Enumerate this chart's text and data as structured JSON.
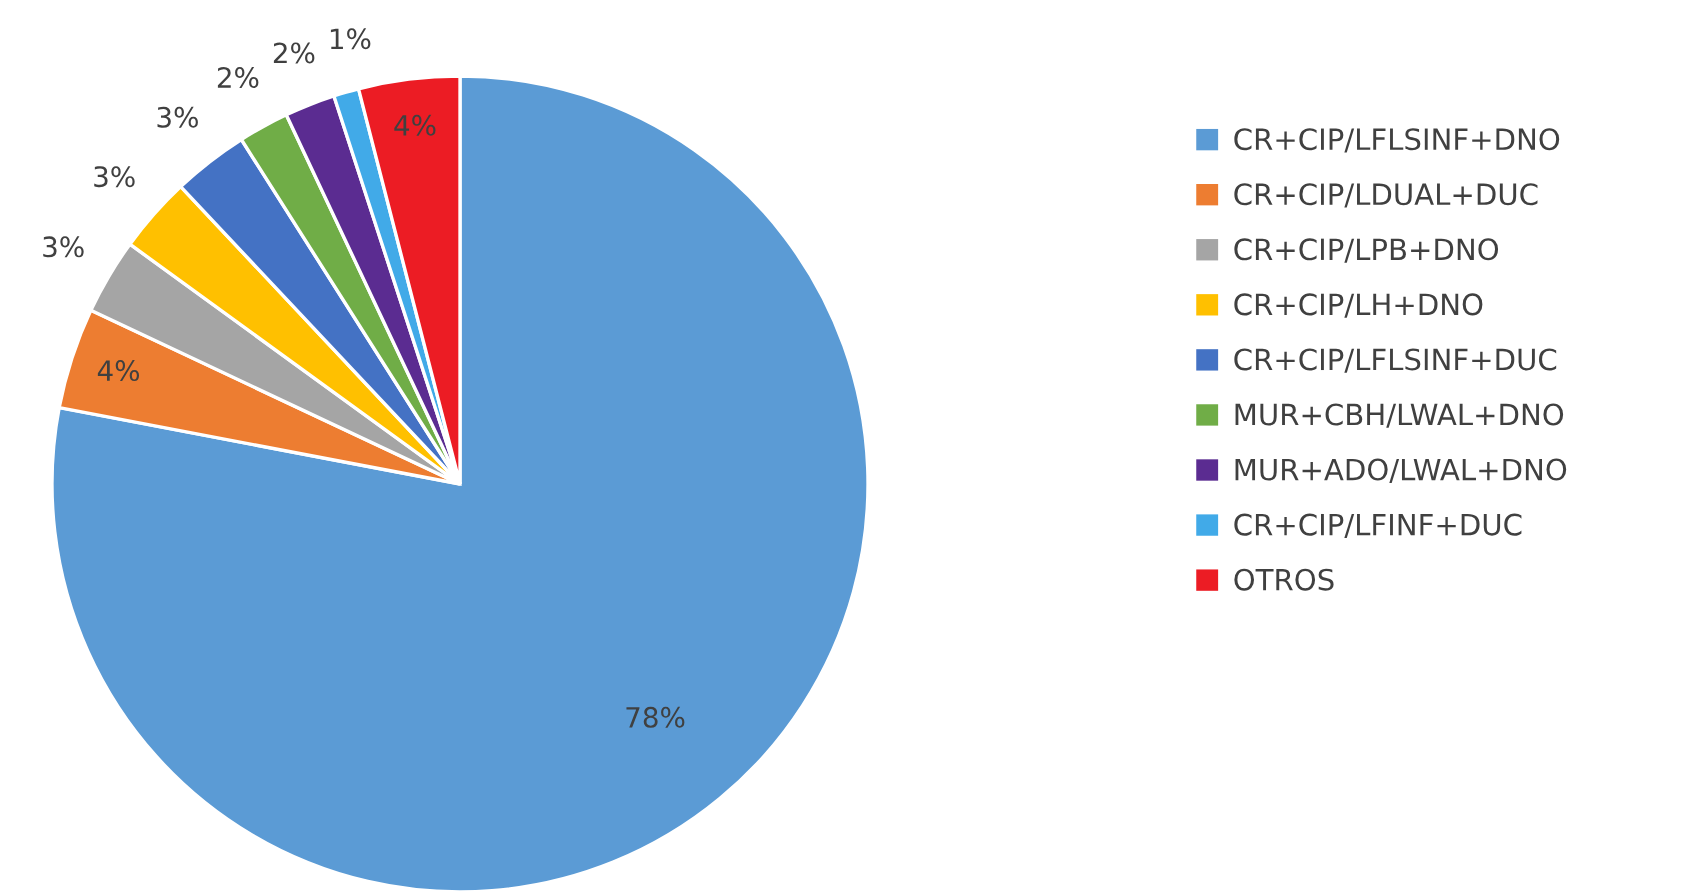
{
  "chart_data": {
    "type": "pie",
    "categories": [
      "CR+CIP/LFLSINF+DNO",
      "CR+CIP/LDUAL+DUC",
      "CR+CIP/LPB+DNO",
      "CR+CIP/LH+DNO",
      "CR+CIP/LFLSINF+DUC",
      "MUR+CBH/LWAL+DNO",
      "MUR+ADO/LWAL+DNO",
      "CR+CIP/LFINF+DUC",
      "OTROS"
    ],
    "values": [
      78,
      4,
      3,
      3,
      3,
      2,
      2,
      1,
      4
    ],
    "colors": [
      "#5b9bd5",
      "#ed7d31",
      "#a5a5a5",
      "#ffc000",
      "#4472c4",
      "#70ad47",
      "#5b2c91",
      "#41aae8",
      "#ec1c24"
    ],
    "value_labels": [
      "78%",
      "4%",
      "3%",
      "3%",
      "3%",
      "2%",
      "2%",
      "1%",
      "4%"
    ],
    "legend": "right"
  }
}
